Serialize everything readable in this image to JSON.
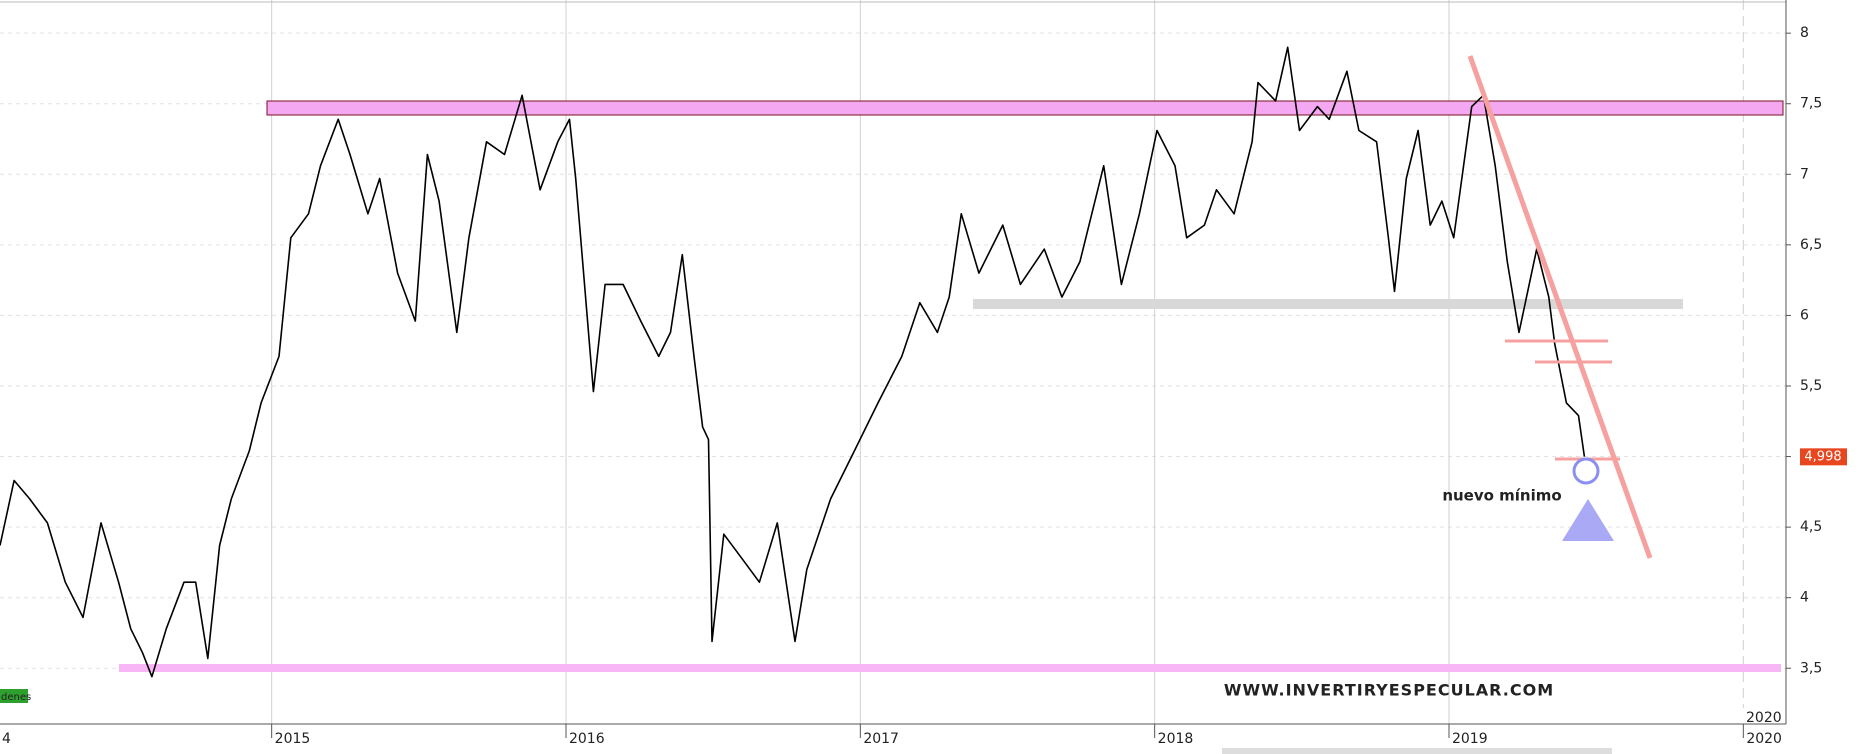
{
  "chart_data": {
    "type": "line",
    "x": [
      2014.077,
      2014.125,
      2014.178,
      2014.238,
      2014.299,
      2014.359,
      2014.42,
      2014.48,
      2014.521,
      2014.561,
      2014.593,
      2014.642,
      2014.702,
      2014.742,
      2014.783,
      2014.823,
      2014.863,
      2014.924,
      2014.964,
      2015.025,
      2015.065,
      2015.125,
      2015.166,
      2015.226,
      2015.266,
      2015.327,
      2015.367,
      2015.428,
      2015.488,
      2015.529,
      2015.569,
      2015.629,
      2015.67,
      2015.73,
      2015.791,
      2015.851,
      2015.912,
      2015.972,
      2016.012,
      2016.033,
      2016.053,
      2016.093,
      2016.133,
      2016.194,
      2016.254,
      2016.315,
      2016.355,
      2016.395,
      2016.435,
      2016.464,
      2016.484,
      2016.496,
      2016.536,
      2016.597,
      2016.657,
      2016.718,
      2016.778,
      2016.818,
      2016.899,
      2016.98,
      2017.06,
      2017.141,
      2017.202,
      2017.262,
      2017.302,
      2017.343,
      2017.403,
      2017.484,
      2017.544,
      2017.625,
      2017.685,
      2017.746,
      2017.827,
      2017.887,
      2017.948,
      2018.008,
      2018.069,
      2018.109,
      2018.169,
      2018.21,
      2018.27,
      2018.331,
      2018.351,
      2018.411,
      2018.452,
      2018.492,
      2018.553,
      2018.593,
      2018.653,
      2018.694,
      2018.754,
      2018.794,
      2018.815,
      2018.855,
      2018.895,
      2018.936,
      2018.976,
      2019.016,
      2019.077,
      2019.117,
      2019.157,
      2019.198,
      2019.238,
      2019.298,
      2019.339,
      2019.359,
      2019.399,
      2019.44,
      2019.46
    ],
    "values": [
      4.37,
      4.83,
      4.7,
      4.53,
      4.11,
      3.86,
      4.53,
      4.11,
      3.78,
      3.61,
      3.44,
      3.78,
      4.11,
      4.11,
      3.57,
      4.37,
      4.7,
      5.04,
      5.38,
      5.71,
      6.55,
      6.72,
      7.06,
      7.39,
      7.14,
      6.72,
      6.97,
      6.3,
      5.96,
      7.14,
      6.81,
      5.88,
      6.55,
      7.23,
      7.14,
      7.56,
      6.89,
      7.23,
      7.39,
      6.97,
      6.47,
      5.46,
      6.22,
      6.22,
      5.96,
      5.71,
      5.88,
      6.43,
      5.71,
      5.21,
      5.12,
      3.69,
      4.45,
      4.28,
      4.11,
      4.53,
      3.69,
      4.2,
      4.7,
      5.04,
      5.38,
      5.71,
      6.09,
      5.88,
      6.13,
      6.72,
      6.3,
      6.64,
      6.22,
      6.47,
      6.13,
      6.38,
      7.06,
      6.22,
      6.72,
      7.31,
      7.06,
      6.55,
      6.64,
      6.89,
      6.72,
      7.23,
      7.65,
      7.52,
      7.9,
      7.31,
      7.48,
      7.39,
      7.73,
      7.31,
      7.23,
      6.55,
      6.17,
      6.97,
      7.31,
      6.64,
      6.81,
      6.55,
      7.48,
      7.56,
      7.06,
      6.38,
      5.88,
      6.47,
      6.13,
      5.8,
      5.38,
      5.29,
      5.0
    ],
    "color": "#000000",
    "xlim": [
      2014.077,
      2020.145
    ],
    "xticks": [
      {
        "value": 2014,
        "label": "4"
      },
      2015,
      2016,
      2017,
      2018,
      2019,
      2020
    ],
    "ylim": [
      3.105,
      8.235
    ],
    "yticks": [
      {
        "value": 3.5,
        "label": "3,5"
      },
      4,
      {
        "value": 4.5,
        "label": "4,5"
      },
      5,
      {
        "value": 5.5,
        "label": "5,5"
      },
      6,
      {
        "value": 6.5,
        "label": "6,5"
      },
      7,
      {
        "value": 7.5,
        "label": "7,5"
      },
      8
    ],
    "last_price": {
      "value": 4.998,
      "label": "4,998"
    },
    "annotations": [
      "nuevo mínimo",
      "WWW.INVERTIRYESPECULAR.COM",
      "2020",
      "denes"
    ],
    "grid": true
  }
}
